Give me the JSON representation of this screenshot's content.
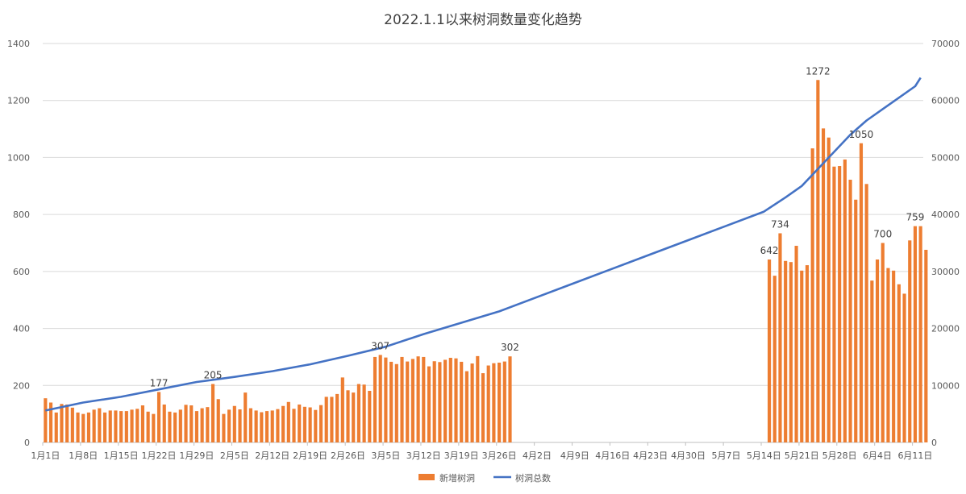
{
  "chart_data": {
    "type": "bar",
    "title": "2022.1.1以来树洞数量变化趋势",
    "legend_position": "bottom",
    "grid": true,
    "y_left": {
      "min": 0,
      "max": 1400,
      "ticks": [
        "0",
        "200",
        "400",
        "600",
        "800",
        "1000",
        "1200",
        "1400"
      ]
    },
    "y_right": {
      "min": 0,
      "max": 70000,
      "ticks": [
        "0",
        "10000",
        "20000",
        "30000",
        "40000",
        "50000",
        "60000",
        "70000"
      ]
    },
    "x_tick_labels": [
      "1月1日",
      "1月8日",
      "1月15日",
      "1月22日",
      "1月29日",
      "2月5日",
      "2月12日",
      "2月19日",
      "2月26日",
      "3月5日",
      "3月12日",
      "3月19日",
      "3月26日",
      "4月2日",
      "4月9日",
      "4月16日",
      "4月23日",
      "4月30日",
      "5月7日",
      "5月14日",
      "5月21日",
      "5月28日",
      "6月4日",
      "6月11日"
    ],
    "x_range_days": [
      0,
      162
    ],
    "series": [
      {
        "name": "新增树洞",
        "kind": "bar",
        "axis": "left",
        "color": "#ED7D31",
        "segments": [
          {
            "start_day": 0,
            "values": [
              155,
              140,
              105,
              135,
              133,
              122,
              105,
              100,
              105,
              115,
              120,
              105,
              112,
              112,
              110,
              110,
              115,
              118,
              130,
              108,
              100,
              177,
              133,
              108,
              105,
              115,
              132,
              130,
              110,
              120,
              124,
              205,
              152,
              100,
              115,
              128,
              116,
              175,
              120,
              112,
              106,
              110,
              112,
              117,
              128,
              142,
              118,
              133,
              125,
              123,
              114,
              131,
              160,
              160,
              170,
              228,
              183,
              175,
              205,
              203,
              181,
              300,
              307,
              298,
              283,
              275,
              300,
              284,
              293,
              302,
              300,
              267,
              285,
              282,
              290,
              297,
              295,
              283,
              250,
              277,
              303,
              243,
              270,
              278,
              280,
              284,
              302
            ]
          },
          {
            "start_day": 134,
            "values": [
              642,
              585,
              734,
              637,
              633,
              690,
              603,
              622,
              1032,
              1272,
              1102,
              1070,
              968,
              970,
              993,
              922,
              852,
              1050,
              907,
              568,
              642,
              700,
              612,
              603,
              555,
              522,
              709,
              759,
              759,
              676
            ]
          }
        ],
        "labels": [
          {
            "day": 21,
            "value": 177
          },
          {
            "day": 31,
            "value": 205
          },
          {
            "day": 62,
            "value": 307
          },
          {
            "day": 86,
            "value": 302
          },
          {
            "day": 134,
            "value": 642
          },
          {
            "day": 136,
            "value": 734
          },
          {
            "day": 143,
            "value": 1272
          },
          {
            "day": 151,
            "value": 1050
          },
          {
            "day": 155,
            "value": 700
          },
          {
            "day": 161,
            "value": 759
          }
        ]
      },
      {
        "name": "树洞总数",
        "kind": "line",
        "axis": "right",
        "color": "#4472C4",
        "points": [
          [
            0,
            5600
          ],
          [
            7,
            7000
          ],
          [
            14,
            8000
          ],
          [
            21,
            9300
          ],
          [
            28,
            10600
          ],
          [
            35,
            11500
          ],
          [
            42,
            12500
          ],
          [
            49,
            13700
          ],
          [
            56,
            15200
          ],
          [
            63,
            16800
          ],
          [
            70,
            19000
          ],
          [
            77,
            21000
          ],
          [
            84,
            23000
          ],
          [
            91,
            25500
          ],
          [
            98,
            28000
          ],
          [
            105,
            30500
          ],
          [
            112,
            33000
          ],
          [
            119,
            35500
          ],
          [
            126,
            38000
          ],
          [
            133,
            40500
          ],
          [
            137,
            43000
          ],
          [
            140,
            45000
          ],
          [
            143,
            48000
          ],
          [
            146,
            51000
          ],
          [
            149,
            54000
          ],
          [
            152,
            56500
          ],
          [
            155,
            58500
          ],
          [
            158,
            60500
          ],
          [
            161,
            62500
          ],
          [
            162,
            64000
          ]
        ]
      }
    ]
  }
}
